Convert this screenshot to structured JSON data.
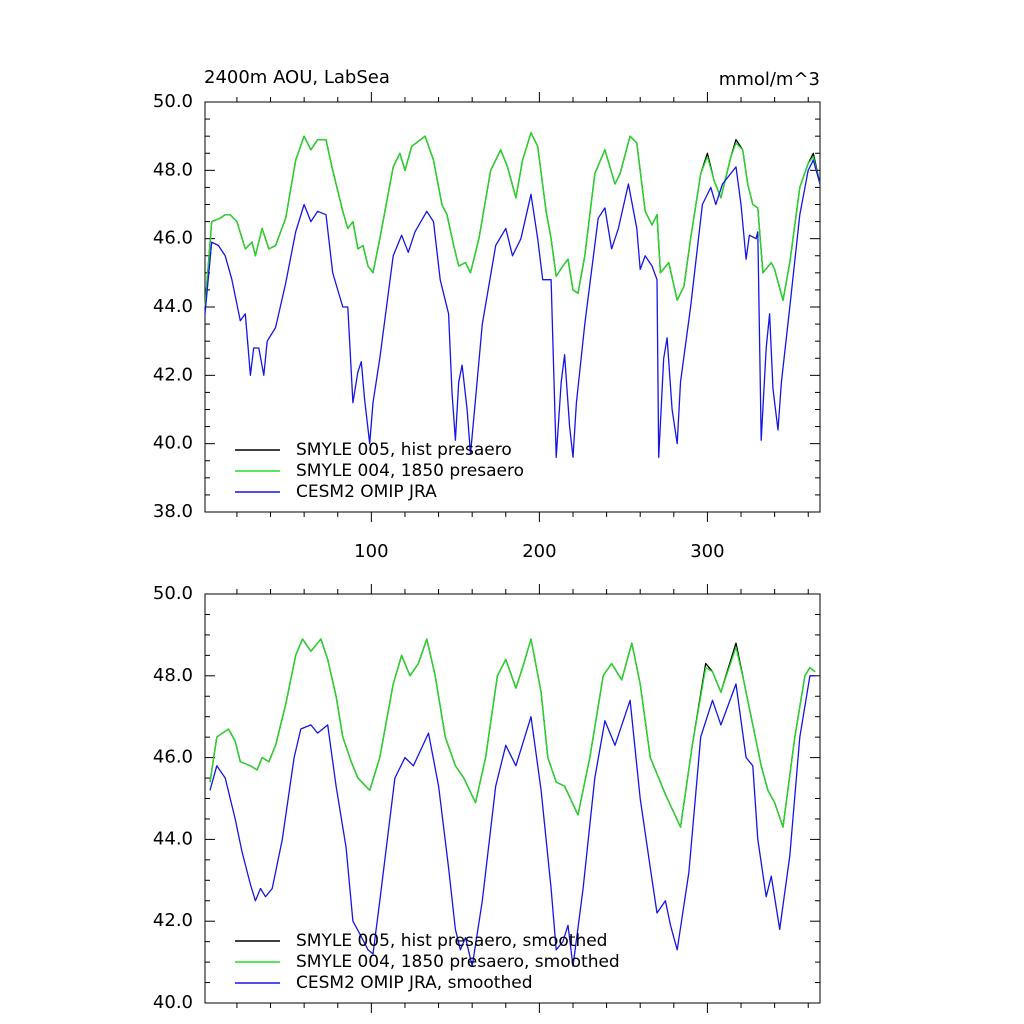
{
  "chart_data": [
    {
      "type": "line",
      "title": "2400m AOU, LabSea",
      "units": "mmol/m^3",
      "xlim": [
        1,
        367
      ],
      "ylim": [
        38,
        50
      ],
      "xticks": [
        100,
        200,
        300
      ],
      "yticks": [
        {
          "value": 38,
          "label": "38.0"
        },
        {
          "value": 40,
          "label": "40.0"
        },
        {
          "value": 42,
          "label": "42.0"
        },
        {
          "value": 44,
          "label": "44.0"
        },
        {
          "value": 46,
          "label": "46.0"
        },
        {
          "value": 48,
          "label": "48.0"
        },
        {
          "value": 50,
          "label": "50.0"
        }
      ],
      "legend": "lower left",
      "series": [
        {
          "name": "SMYLE 005, hist presaero",
          "color": "#000000",
          "x": [
            1,
            5,
            10,
            13,
            16,
            20,
            25,
            29,
            31,
            35,
            39,
            43,
            49,
            55,
            60,
            64,
            68,
            73,
            77,
            83,
            86,
            89,
            92,
            95,
            98,
            101,
            105,
            113,
            117,
            120,
            124,
            132,
            137,
            142,
            145,
            149,
            152,
            156,
            159,
            164,
            171,
            177,
            181,
            186,
            190,
            195,
            199,
            204,
            207,
            210,
            214,
            217,
            220,
            223,
            227,
            233,
            239,
            245,
            248,
            254,
            258,
            263,
            267,
            270,
            272,
            277,
            282,
            286,
            290,
            296,
            300,
            304,
            308,
            314,
            317,
            321,
            324,
            327,
            330,
            333,
            338,
            340,
            345,
            349,
            355,
            360,
            363,
            367
          ],
          "values": [
            44.0,
            46.5,
            46.6,
            46.7,
            46.7,
            46.5,
            45.7,
            45.9,
            45.5,
            46.3,
            45.7,
            45.8,
            46.6,
            48.3,
            49.0,
            48.6,
            48.9,
            48.9,
            48.0,
            46.8,
            46.3,
            46.5,
            45.7,
            45.8,
            45.2,
            45.0,
            46.0,
            48.1,
            48.5,
            48.0,
            48.7,
            49.0,
            48.3,
            47.0,
            46.7,
            45.8,
            45.2,
            45.3,
            45.0,
            46.0,
            48.0,
            48.6,
            48.1,
            47.2,
            48.3,
            49.1,
            48.7,
            46.8,
            46.0,
            44.9,
            45.2,
            45.4,
            44.5,
            44.4,
            45.5,
            47.9,
            48.6,
            47.6,
            47.9,
            49.0,
            48.8,
            46.8,
            46.4,
            46.7,
            45.0,
            45.3,
            44.2,
            44.6,
            46.0,
            47.9,
            48.5,
            47.7,
            47.2,
            48.4,
            48.9,
            48.6,
            47.6,
            47.0,
            46.9,
            45.0,
            45.3,
            45.1,
            44.2,
            45.3,
            47.5,
            48.2,
            48.5,
            47.6
          ]
        },
        {
          "name": "SMYLE 004, 1850 presaero",
          "color": "#22dd22",
          "x": [
            1,
            5,
            10,
            13,
            16,
            20,
            25,
            29,
            31,
            35,
            39,
            43,
            49,
            55,
            60,
            64,
            68,
            73,
            77,
            83,
            86,
            89,
            92,
            95,
            98,
            101,
            105,
            113,
            117,
            120,
            124,
            132,
            137,
            142,
            145,
            149,
            152,
            156,
            159,
            164,
            171,
            177,
            181,
            186,
            190,
            195,
            199,
            204,
            207,
            210,
            214,
            217,
            220,
            223,
            227,
            233,
            239,
            245,
            248,
            254,
            258,
            263,
            267,
            270,
            272,
            277,
            282,
            286,
            290,
            296,
            300,
            304,
            308,
            314,
            317,
            321,
            324,
            327,
            330,
            333,
            338,
            340,
            345,
            349,
            355,
            360,
            363,
            367
          ],
          "values": [
            44.0,
            46.5,
            46.6,
            46.7,
            46.7,
            46.5,
            45.7,
            45.9,
            45.5,
            46.3,
            45.7,
            45.8,
            46.6,
            48.3,
            49.0,
            48.6,
            48.9,
            48.9,
            48.0,
            46.8,
            46.3,
            46.5,
            45.7,
            45.8,
            45.2,
            45.0,
            46.0,
            48.1,
            48.5,
            48.0,
            48.7,
            49.0,
            48.3,
            47.0,
            46.7,
            45.8,
            45.2,
            45.3,
            45.0,
            46.0,
            48.0,
            48.6,
            48.1,
            47.2,
            48.3,
            49.1,
            48.7,
            46.8,
            46.0,
            44.9,
            45.2,
            45.4,
            44.5,
            44.4,
            45.5,
            47.9,
            48.6,
            47.6,
            47.9,
            49.0,
            48.8,
            46.8,
            46.4,
            46.7,
            45.0,
            45.3,
            44.2,
            44.6,
            46.0,
            47.9,
            48.4,
            47.7,
            47.2,
            48.4,
            48.8,
            48.6,
            47.6,
            47.0,
            46.9,
            45.0,
            45.3,
            45.1,
            44.2,
            45.3,
            47.5,
            48.2,
            48.4,
            47.6
          ]
        },
        {
          "name": "CESM2 OMIP JRA",
          "color": "#1515e6",
          "x": [
            1,
            5,
            9,
            13,
            17,
            22,
            25,
            28,
            30,
            33,
            36,
            38,
            43,
            49,
            55,
            60,
            64,
            68,
            73,
            77,
            83,
            86,
            89,
            92,
            94,
            96,
            99,
            101,
            105,
            113,
            118,
            122,
            126,
            133,
            137,
            141,
            146,
            148,
            150,
            152,
            154,
            157,
            159,
            162,
            166,
            174,
            180,
            184,
            189,
            195,
            199,
            202,
            207,
            210,
            213,
            215,
            218,
            220,
            222,
            227,
            235,
            239,
            243,
            247,
            253,
            258,
            260,
            263,
            267,
            270,
            271,
            274,
            276,
            279,
            282,
            284,
            290,
            297,
            302,
            305,
            309,
            317,
            320,
            323,
            325,
            329,
            330,
            332,
            335,
            337,
            339,
            342,
            344,
            349,
            355,
            360,
            363,
            367
          ],
          "values": [
            43.8,
            45.9,
            45.8,
            45.5,
            44.8,
            43.6,
            43.8,
            42.0,
            42.8,
            42.8,
            42.0,
            43.0,
            43.4,
            44.7,
            46.2,
            47.0,
            46.5,
            46.8,
            46.7,
            45.0,
            44.0,
            44.0,
            41.2,
            42.1,
            42.4,
            41.3,
            40.0,
            41.2,
            42.5,
            45.5,
            46.1,
            45.6,
            46.2,
            46.8,
            46.5,
            44.8,
            43.8,
            41.5,
            40.1,
            41.8,
            42.3,
            41.0,
            39.7,
            41.3,
            43.5,
            45.8,
            46.3,
            45.5,
            46.0,
            47.3,
            46.0,
            44.8,
            44.8,
            39.6,
            41.8,
            42.6,
            40.5,
            39.6,
            41.2,
            43.5,
            46.6,
            46.9,
            45.7,
            46.3,
            47.6,
            46.3,
            45.1,
            45.5,
            45.2,
            44.8,
            39.6,
            42.5,
            43.1,
            41.0,
            40.0,
            41.8,
            44.0,
            47.0,
            47.5,
            47.0,
            47.6,
            48.1,
            47.0,
            45.4,
            46.1,
            46.0,
            46.2,
            40.1,
            42.8,
            43.8,
            41.6,
            40.4,
            41.8,
            44.0,
            46.7,
            48.0,
            48.3,
            47.6
          ]
        }
      ]
    },
    {
      "type": "line",
      "xlim": [
        1,
        367
      ],
      "ylim": [
        40,
        50
      ],
      "xticks": [
        100,
        200,
        300
      ],
      "yticks": [
        {
          "value": 40,
          "label": "40.0"
        },
        {
          "value": 42,
          "label": "42.0"
        },
        {
          "value": 44,
          "label": "44.0"
        },
        {
          "value": 46,
          "label": "46.0"
        },
        {
          "value": 48,
          "label": "48.0"
        },
        {
          "value": 50,
          "label": "50.0"
        }
      ],
      "legend": "lower left",
      "series": [
        {
          "name": "SMYLE 005, hist presaero, smoothed",
          "color": "#000000",
          "x": [
            4,
            8,
            15,
            19,
            22,
            28,
            32,
            35,
            39,
            43,
            49,
            55,
            59,
            64,
            70,
            74,
            79,
            83,
            88,
            92,
            99,
            105,
            113,
            118,
            123,
            128,
            133,
            138,
            144,
            150,
            155,
            162,
            168,
            175,
            180,
            186,
            190,
            195,
            201,
            205,
            210,
            215,
            223,
            230,
            238,
            243,
            249,
            255,
            260,
            266,
            271,
            275,
            284,
            291,
            299,
            303,
            308,
            317,
            322,
            327,
            332,
            336,
            340,
            345,
            352,
            358,
            361,
            364
          ],
          "values": [
            45.4,
            46.5,
            46.7,
            46.4,
            45.9,
            45.8,
            45.7,
            46.0,
            45.9,
            46.3,
            47.3,
            48.5,
            48.9,
            48.6,
            48.9,
            48.4,
            47.5,
            46.5,
            45.9,
            45.5,
            45.2,
            46.0,
            47.8,
            48.5,
            48.0,
            48.3,
            48.9,
            48.0,
            46.5,
            45.8,
            45.5,
            44.9,
            46.0,
            48.0,
            48.4,
            47.7,
            48.2,
            48.9,
            47.6,
            46.0,
            45.4,
            45.3,
            44.6,
            46.0,
            48.0,
            48.3,
            47.9,
            48.8,
            47.8,
            46.0,
            45.5,
            45.1,
            44.3,
            46.3,
            48.3,
            48.1,
            47.6,
            48.8,
            47.8,
            46.8,
            45.8,
            45.2,
            44.9,
            44.3,
            46.5,
            48.0,
            48.2,
            48.1
          ]
        },
        {
          "name": "SMYLE 004, 1850 presaero, smoothed",
          "color": "#22dd22",
          "x": [
            4,
            8,
            15,
            19,
            22,
            28,
            32,
            35,
            39,
            43,
            49,
            55,
            59,
            64,
            70,
            74,
            79,
            83,
            88,
            92,
            99,
            105,
            113,
            118,
            123,
            128,
            133,
            138,
            144,
            150,
            155,
            162,
            168,
            175,
            180,
            186,
            190,
            195,
            201,
            205,
            210,
            215,
            223,
            230,
            238,
            243,
            249,
            255,
            260,
            266,
            271,
            275,
            284,
            291,
            299,
            303,
            308,
            317,
            322,
            327,
            332,
            336,
            340,
            345,
            352,
            358,
            361,
            364
          ],
          "values": [
            45.4,
            46.5,
            46.7,
            46.4,
            45.9,
            45.8,
            45.7,
            46.0,
            45.9,
            46.3,
            47.3,
            48.5,
            48.9,
            48.6,
            48.9,
            48.4,
            47.5,
            46.5,
            45.9,
            45.5,
            45.2,
            46.0,
            47.8,
            48.5,
            48.0,
            48.3,
            48.9,
            48.0,
            46.5,
            45.8,
            45.5,
            44.9,
            46.0,
            48.0,
            48.4,
            47.7,
            48.2,
            48.9,
            47.6,
            46.0,
            45.4,
            45.3,
            44.6,
            46.0,
            48.0,
            48.3,
            47.9,
            48.8,
            47.8,
            46.0,
            45.5,
            45.1,
            44.3,
            46.3,
            48.2,
            48.1,
            47.6,
            48.7,
            47.8,
            46.8,
            45.8,
            45.2,
            44.9,
            44.3,
            46.5,
            48.0,
            48.2,
            48.1
          ]
        },
        {
          "name": "CESM2 OMIP JRA, smoothed",
          "color": "#1515e6",
          "x": [
            4,
            8,
            13,
            19,
            23,
            28,
            31,
            34,
            37,
            41,
            47,
            54,
            58,
            64,
            68,
            74,
            79,
            85,
            89,
            93,
            98,
            101,
            105,
            114,
            120,
            125,
            134,
            140,
            146,
            150,
            153,
            156,
            160,
            166,
            174,
            180,
            186,
            195,
            201,
            207,
            210,
            214,
            217,
            220,
            226,
            233,
            239,
            245,
            254,
            260,
            266,
            270,
            275,
            278,
            282,
            289,
            296,
            303,
            308,
            317,
            323,
            327,
            330,
            335,
            338,
            343,
            349,
            355,
            361,
            364
          ],
          "values": [
            45.2,
            45.8,
            45.5,
            44.5,
            43.7,
            42.9,
            42.5,
            42.8,
            42.6,
            42.8,
            44.0,
            46.0,
            46.7,
            46.8,
            46.6,
            46.8,
            45.3,
            43.8,
            42.0,
            41.7,
            41.3,
            41.2,
            42.5,
            45.5,
            46.0,
            45.8,
            46.6,
            45.3,
            43.3,
            41.8,
            41.3,
            41.6,
            40.9,
            42.5,
            45.3,
            46.3,
            45.8,
            47.0,
            45.2,
            42.8,
            41.3,
            41.5,
            41.9,
            40.9,
            42.8,
            45.5,
            46.9,
            46.3,
            47.4,
            45.0,
            43.3,
            42.2,
            42.5,
            41.9,
            41.3,
            43.2,
            46.5,
            47.4,
            46.8,
            47.8,
            46.0,
            45.8,
            44.0,
            42.6,
            43.1,
            41.8,
            43.6,
            46.5,
            48.0,
            48.0
          ]
        }
      ]
    }
  ]
}
